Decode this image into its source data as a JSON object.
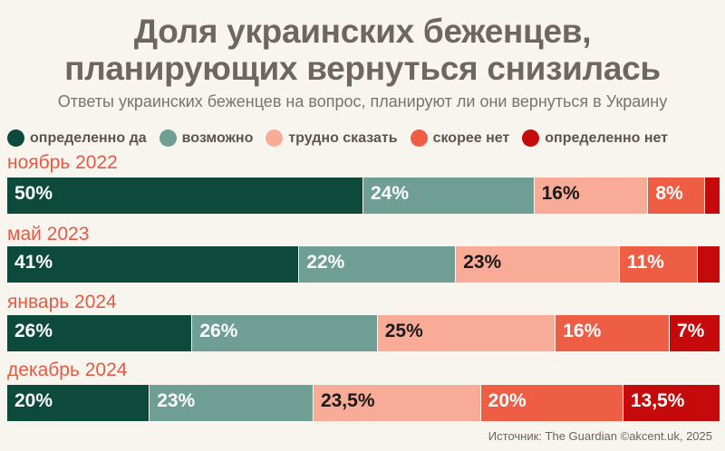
{
  "title_line1": "Доля украинских беженцев,",
  "title_line2": "планирующих вернуться снизилась",
  "subtitle": "Ответы украинских беженцев на вопрос, планируют ли они вернуться в Украину",
  "source": "Источник: The Guardian  ©akcent.uk, 2025",
  "chart_data": {
    "type": "bar",
    "stacked": true,
    "orientation": "horizontal",
    "unit": "%",
    "categories": [
      "ноябрь 2022",
      "май 2023",
      "январь 2024",
      "декабрь 2024"
    ],
    "series": [
      {
        "name": "определенно да",
        "color": "#0d4a3c",
        "label_color": "#ffffff",
        "values": [
          50,
          41,
          26,
          20
        ],
        "labels": [
          "50%",
          "41%",
          "26%",
          "20%"
        ]
      },
      {
        "name": "возможно",
        "color": "#6e9e94",
        "label_color": "#ffffff",
        "values": [
          24,
          22,
          26,
          23
        ],
        "labels": [
          "24%",
          "22%",
          "26%",
          "23%"
        ]
      },
      {
        "name": "трудно сказать",
        "color": "#f8ab96",
        "label_color": "#1a1a1a",
        "values": [
          16,
          23,
          25,
          23.5
        ],
        "labels": [
          "16%",
          "23%",
          "25%",
          "23,5%"
        ]
      },
      {
        "name": "скорее нет",
        "color": "#ee5e44",
        "label_color": "#ffffff",
        "values": [
          8,
          11,
          16,
          20
        ],
        "labels": [
          "8%",
          "11%",
          "16%",
          "20%"
        ]
      },
      {
        "name": "определенно нет",
        "color": "#c40a0a",
        "label_color": "#ffffff",
        "values": [
          2,
          3,
          7,
          13.5
        ],
        "labels": [
          "",
          "",
          "7%",
          "13,5%"
        ]
      }
    ]
  }
}
